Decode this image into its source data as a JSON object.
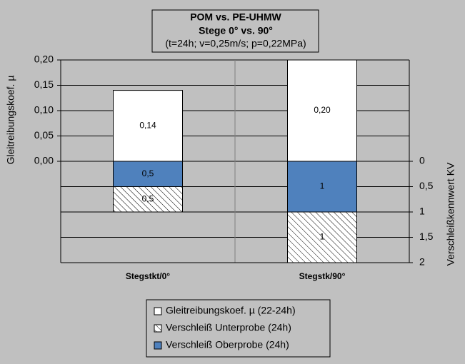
{
  "chart_data": {
    "type": "bar",
    "title": "POM vs. PE-UHMW",
    "subtitle": "Stege 0° vs. 90°",
    "note": "(t=24h; v=0,25m/s; p=0,22MPa)",
    "y_label": "Gleitreibungskoef. µ",
    "y2_label": "Verschleißkennwert  KV",
    "categories": [
      "Stegstkt/0°",
      "Stegstk/90°"
    ],
    "ylim": [
      0,
      0.2
    ],
    "yticks": [
      {
        "value": 0,
        "label": "0,00"
      },
      {
        "value": 0.05,
        "label": "0,05"
      },
      {
        "value": 0.1,
        "label": "0,10"
      },
      {
        "value": 0.15,
        "label": "0,15"
      },
      {
        "value": 0.2,
        "label": "0,20"
      }
    ],
    "y2lim": [
      0,
      2
    ],
    "y2ticks": [
      0,
      {
        "value": 0.5,
        "label": "0,5"
      },
      1,
      {
        "value": 1.5,
        "label": "1,5"
      },
      2
    ],
    "y2_inverted": true,
    "grid": true,
    "series": [
      {
        "name": "Gleitreibungskoef. µ (22-24h)",
        "color": "#ffffff",
        "axis": "y",
        "values": [
          0.14,
          0.2
        ],
        "value_labels": [
          "0,14",
          "0,20"
        ]
      },
      {
        "name": "Verschleiß Unterprobe (24h)",
        "color": "#ffffff",
        "pattern": "hatch",
        "axis": "y2",
        "values": [
          0.5,
          1
        ],
        "value_labels": [
          "0,5",
          "1"
        ]
      },
      {
        "name": "Verschleiß Oberprobe (24h)",
        "color": "#4f81bd",
        "axis": "y2",
        "values": [
          0.5,
          1
        ],
        "value_labels": [
          "0,5",
          "1"
        ]
      }
    ]
  }
}
